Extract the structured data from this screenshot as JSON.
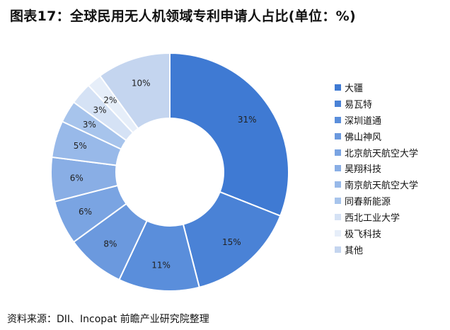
{
  "header": {
    "title": "图表17：全球民用无人机领域专利申请人占比(单位：%)"
  },
  "footer": {
    "source": "资料来源：DII、Incopat 前瞻产业研究院整理"
  },
  "colors": {
    "series": [
      "#3f7ad3",
      "#4a82d6",
      "#5a8edb",
      "#6b99de",
      "#7aa4e2",
      "#89aee5",
      "#98b9e9",
      "#a7c4ec",
      "#d5e2f5",
      "#e6eef9",
      "#c4d5ef"
    ]
  },
  "chart_data": {
    "type": "pie",
    "variant": "donut",
    "title": "图表17：全球民用无人机领域专利申请人占比(单位：%)",
    "unit": "%",
    "categories": [
      "大疆",
      "易瓦特",
      "深圳道通",
      "佛山神风",
      "北京航天航空大学",
      "昊翔科技",
      "南京航天航空大学",
      "同春新能源",
      "西北工业大学",
      "极飞科技",
      "其他"
    ],
    "values": [
      31,
      15,
      11,
      8,
      6,
      6,
      5,
      3,
      3,
      2,
      10
    ],
    "data_labels": [
      "31%",
      "15%",
      "11%",
      "8%",
      "6%",
      "6%",
      "5%",
      "3%",
      "3%",
      "2%",
      "10%"
    ],
    "legend_position": "right"
  }
}
